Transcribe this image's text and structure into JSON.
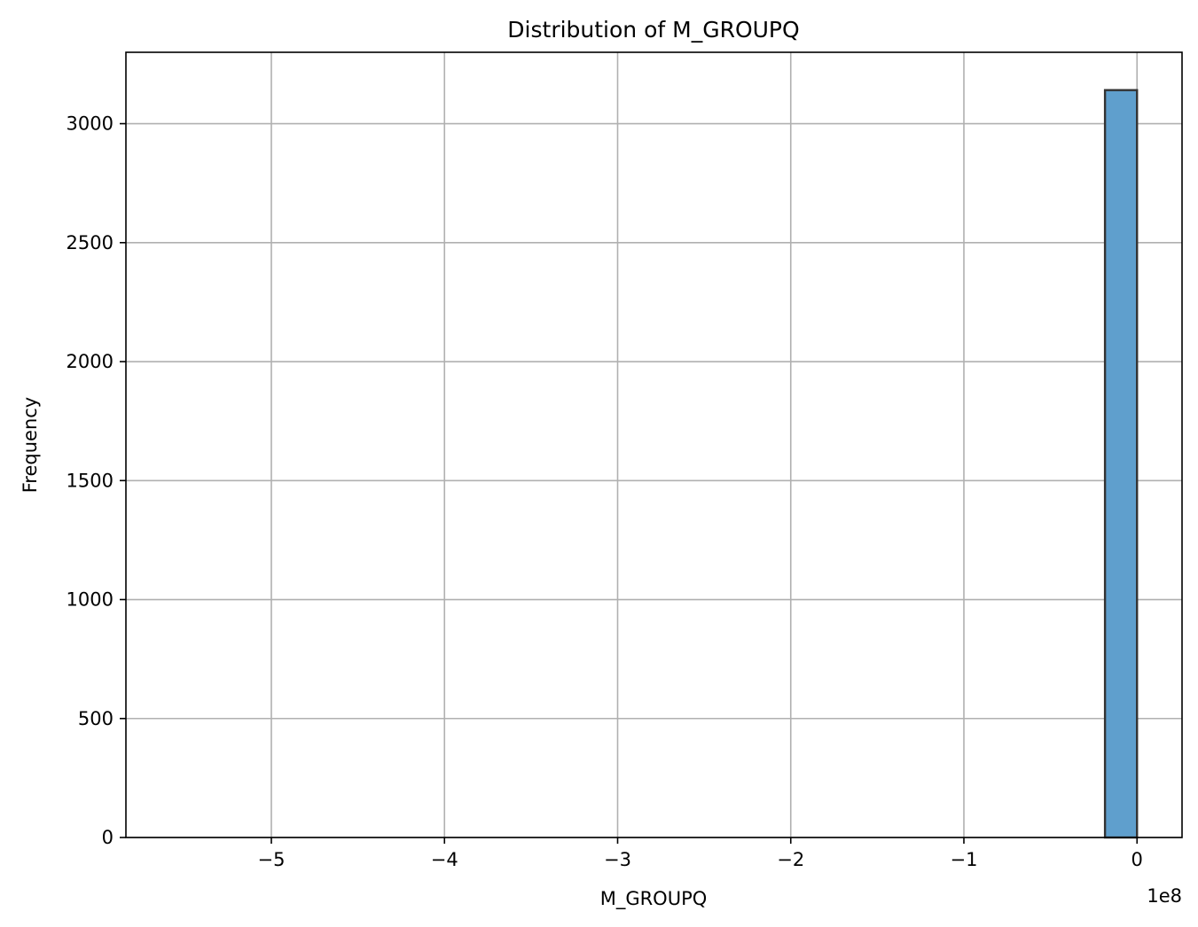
{
  "chart_data": {
    "type": "bar",
    "title": "Distribution of M_GROUPQ",
    "xlabel": "M_GROUPQ",
    "ylabel": "Frequency",
    "x_offset_text": "1e8",
    "x_scale_factor": 100000000,
    "xlim": [
      -5.84,
      0.26
    ],
    "ylim": [
      0,
      3300
    ],
    "xticks": [
      -5,
      -4,
      -3,
      -2,
      -1,
      0
    ],
    "xtick_labels": [
      "−5",
      "−4",
      "−3",
      "−2",
      "−1",
      "0"
    ],
    "yticks": [
      0,
      500,
      1000,
      1500,
      2000,
      2500,
      3000
    ],
    "ytick_labels": [
      "0",
      "500",
      "1000",
      "1500",
      "2000",
      "2500",
      "3000"
    ],
    "grid": true,
    "bars": [
      {
        "x_start": -0.185,
        "x_end": 0.0,
        "value": 3141
      }
    ],
    "bar_color": "#5f9fcd",
    "bar_edge_color": "#333333"
  }
}
